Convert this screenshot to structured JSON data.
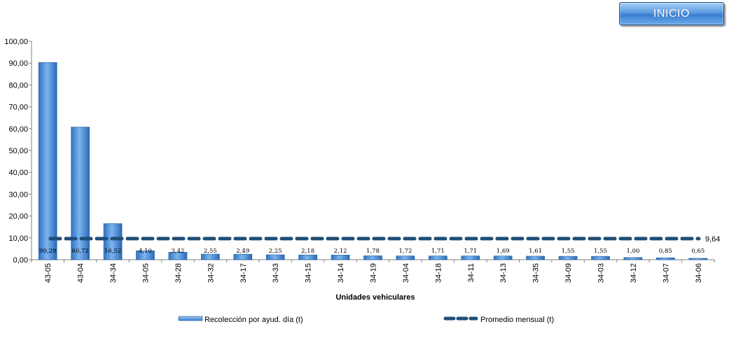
{
  "button": {
    "label": "INICIO"
  },
  "colors": {
    "bar": "#4a90d9",
    "bar_edge": "#1f5a9e",
    "avg_line": "#1f4e79",
    "axis": "#808080"
  },
  "chart_data": {
    "type": "bar",
    "xlabel": "Unidades vehiculares",
    "ylabel": "",
    "ylim": [
      0,
      100
    ],
    "yticks": [
      "0,00",
      "10,00",
      "20,00",
      "30,00",
      "40,00",
      "50,00",
      "60,00",
      "70,00",
      "80,00",
      "90,00",
      "100,00"
    ],
    "categories": [
      "43-05",
      "43-04",
      "34-34",
      "34-05",
      "34-28",
      "34-32",
      "34-17",
      "34-33",
      "34-15",
      "34-14",
      "34-19",
      "34-04",
      "34-18",
      "34-11",
      "34-13",
      "34-35",
      "34-09",
      "34-03",
      "34-12",
      "34-07",
      "34-06"
    ],
    "series": [
      {
        "name": "Recolección por ayud. día (t)",
        "type": "bar",
        "values": [
          90.29,
          60.72,
          16.52,
          4.1,
          3.42,
          2.55,
          2.49,
          2.25,
          2.18,
          2.12,
          1.78,
          1.72,
          1.71,
          1.71,
          1.69,
          1.61,
          1.55,
          1.55,
          1.0,
          0.85,
          0.65
        ],
        "labels": [
          "90,29",
          "60,72",
          "16,52",
          "4,10",
          "3,42",
          "2,55",
          "2,49",
          "2,25",
          "2,18",
          "2,12",
          "1,78",
          "1,72",
          "1,71",
          "1,71",
          "1,69",
          "1,61",
          "1,55",
          "1,55",
          "1,00",
          "0,85",
          "0,65"
        ]
      },
      {
        "name": "Promedio mensual (t)",
        "type": "line",
        "value": 9.64,
        "label": "9,64"
      }
    ],
    "legend": "bottom",
    "grid": false
  }
}
